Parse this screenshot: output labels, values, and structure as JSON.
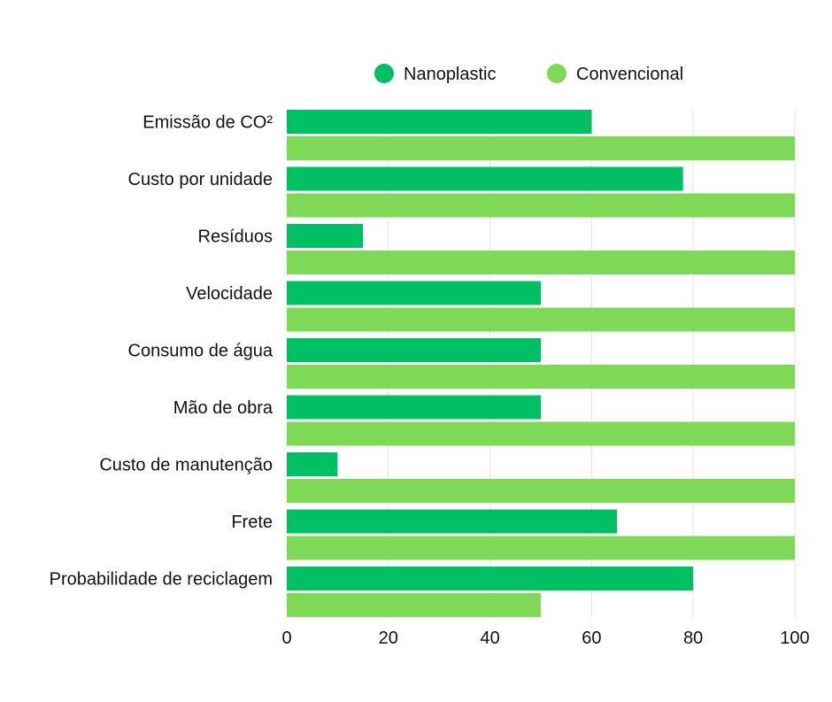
{
  "chart_data": {
    "type": "bar",
    "orientation": "horizontal",
    "categories": [
      "Emissão de CO²",
      "Custo por unidade",
      "Resíduos",
      "Velocidade",
      "Consumo de água",
      "Mão de obra",
      "Custo de manutenção",
      "Frete",
      "Probabilidade de reciclagem"
    ],
    "series": [
      {
        "name": "Nanoplastic",
        "color": "#00c064",
        "values": [
          60,
          78,
          15,
          50,
          50,
          50,
          10,
          65,
          80
        ]
      },
      {
        "name": "Convencional",
        "color": "#7ed957",
        "values": [
          100,
          100,
          100,
          100,
          100,
          100,
          100,
          100,
          50
        ]
      }
    ],
    "xlim": [
      0,
      100
    ],
    "xticks": [
      "0",
      "20",
      "40",
      "60",
      "80",
      "100"
    ],
    "title": "",
    "xlabel": "",
    "ylabel": "",
    "grid": "vertical",
    "legend_position": "top"
  }
}
